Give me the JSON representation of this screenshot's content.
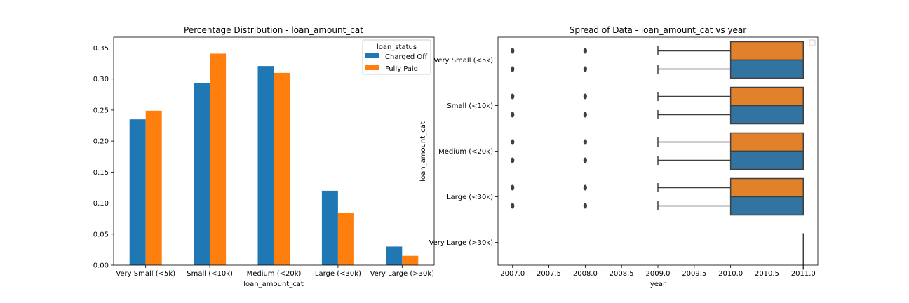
{
  "chart_data": [
    {
      "type": "bar",
      "title": "Percentage Distribution - loan_amount_cat",
      "xlabel": "loan_amount_cat",
      "ylabel": "",
      "ylim": [
        0,
        0.35
      ],
      "yticks": [
        "0.00",
        "0.05",
        "0.10",
        "0.15",
        "0.20",
        "0.25",
        "0.30",
        "0.35"
      ],
      "categories": [
        "Very Small (<5k)",
        "Small (<10k)",
        "Medium (<20k)",
        "Large (<30k)",
        "Very Large (>30k)"
      ],
      "series": [
        {
          "name": "Charged Off",
          "color": "#1f77b4",
          "values": [
            0.235,
            0.294,
            0.321,
            0.12,
            0.03
          ]
        },
        {
          "name": "Fully Paid",
          "color": "#ff7f0e",
          "values": [
            0.249,
            0.341,
            0.31,
            0.084,
            0.015
          ]
        }
      ],
      "legend": {
        "title": "loan_status",
        "position": "top-right"
      },
      "grid": false
    },
    {
      "type": "boxplot",
      "orientation": "horizontal",
      "title": "Spread of Data - loan_amount_cat vs year",
      "xlabel": "year",
      "ylabel": "loan_amount_cat",
      "xlim": [
        2006.8,
        2011.2
      ],
      "xticks": [
        "2007.0",
        "2007.5",
        "2008.0",
        "2008.5",
        "2009.0",
        "2009.5",
        "2010.0",
        "2010.5",
        "2011.0"
      ],
      "categories": [
        "Very Small (<5k)",
        "Small (<10k)",
        "Medium (<20k)",
        "Large (<30k)",
        "Very Large (>30k)"
      ],
      "legend": {
        "position": "top-right",
        "entries": []
      },
      "grid": false,
      "series": [
        {
          "color": "#e1812c",
          "boxes": [
            {
              "category": "Very Small (<5k)",
              "whislo": 2009,
              "q1": 2010,
              "med": 2011,
              "q3": 2011,
              "whishi": 2011,
              "fliers": [
                2007,
                2008
              ]
            },
            {
              "category": "Small (<10k)",
              "whislo": 2009,
              "q1": 2010,
              "med": 2011,
              "q3": 2011,
              "whishi": 2011,
              "fliers": [
                2007,
                2008
              ]
            },
            {
              "category": "Medium (<20k)",
              "whislo": 2009,
              "q1": 2010,
              "med": 2011,
              "q3": 2011,
              "whishi": 2011,
              "fliers": [
                2007,
                2008
              ]
            },
            {
              "category": "Large (<30k)",
              "whislo": 2009,
              "q1": 2010,
              "med": 2011,
              "q3": 2011,
              "whishi": 2011,
              "fliers": [
                2007,
                2008
              ]
            }
          ]
        },
        {
          "color": "#3274a1",
          "boxes": [
            {
              "category": "Very Small (<5k)",
              "whislo": 2009,
              "q1": 2010,
              "med": 2011,
              "q3": 2011,
              "whishi": 2011,
              "fliers": [
                2007,
                2008
              ]
            },
            {
              "category": "Small (<10k)",
              "whislo": 2009,
              "q1": 2010,
              "med": 2011,
              "q3": 2011,
              "whishi": 2011,
              "fliers": [
                2007,
                2008
              ]
            },
            {
              "category": "Medium (<20k)",
              "whislo": 2009,
              "q1": 2010,
              "med": 2011,
              "q3": 2011,
              "whishi": 2011,
              "fliers": [
                2007,
                2008
              ]
            },
            {
              "category": "Large (<30k)",
              "whislo": 2009,
              "q1": 2010,
              "med": 2011,
              "q3": 2011,
              "whishi": 2011,
              "fliers": [
                2007,
                2008
              ]
            },
            {
              "category": "Very Large (>30k)",
              "whislo": 2011,
              "q1": 2011,
              "med": 2011,
              "q3": 2011,
              "whishi": 2011,
              "fliers": []
            }
          ]
        }
      ]
    }
  ]
}
